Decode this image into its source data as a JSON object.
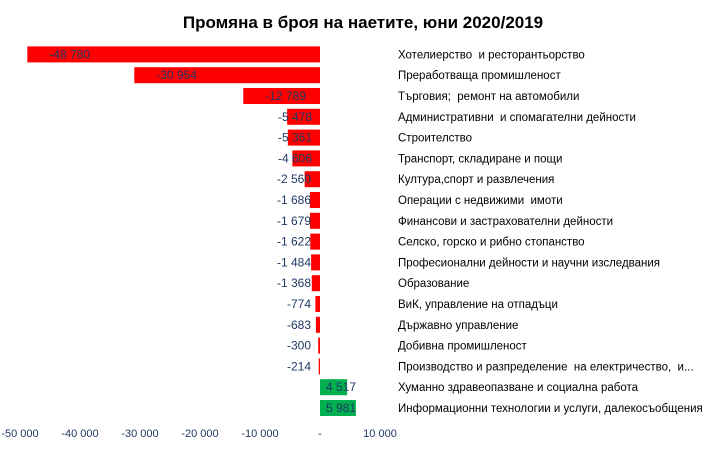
{
  "chart_data": {
    "type": "bar",
    "orientation": "horizontal",
    "title": "Промяна в броя на наетите, юни 2020/2019",
    "xlabel": "",
    "ylabel": "",
    "xlim": [
      -50000,
      10000
    ],
    "grid": false,
    "legend": "none",
    "categories": [
      "Хотелиерство  и ресторантьорство",
      "Преработваща промишленост",
      "Търговия;  ремонт на автомобили",
      "Административни  и спомагателни дейности",
      "Строителство",
      "Транспорт, складиране и пощи",
      "Култура,спорт и развлечения",
      "Операции с недвижими  имоти",
      "Финансови и застрахователни дейности",
      "Селско, горско и рибно стопанство",
      "Професионални дейности и научни изследвания",
      "Образование",
      "ВиК, управление на отпадъци",
      "Държавно управление",
      "Добивна промишленост",
      "Производство и разпределение  на електричество,  и...",
      "Хуманно здравеопазване и социална работа",
      "Информационни технологии и услуги, далекосъобщения"
    ],
    "values": [
      -48780,
      -30954,
      -12789,
      -5478,
      -5361,
      -4606,
      -2560,
      -1686,
      -1679,
      -1622,
      -1484,
      -1368,
      -774,
      -683,
      -300,
      -214,
      4517,
      5981
    ],
    "value_labels": [
      "-48 780",
      "-30 954",
      "-12 789",
      "-5 478",
      "-5 361",
      "-4 606",
      "-2 560",
      "-1 686",
      "-1 679",
      "-1 622",
      "-1 484",
      "-1 368",
      "-774",
      "-683",
      "-300",
      "-214",
      "4 517",
      "5 981"
    ],
    "ticks": [
      -50000,
      -40000,
      -30000,
      -20000,
      -10000,
      0,
      10000
    ],
    "tick_labels": [
      "-50 000",
      "-40 000",
      "-30 000",
      "-20 000",
      "-10 000",
      "-",
      "10 000"
    ],
    "colors": {
      "negative": "#ff0000",
      "positive": "#00b050",
      "value_text": "#1f3864"
    }
  }
}
